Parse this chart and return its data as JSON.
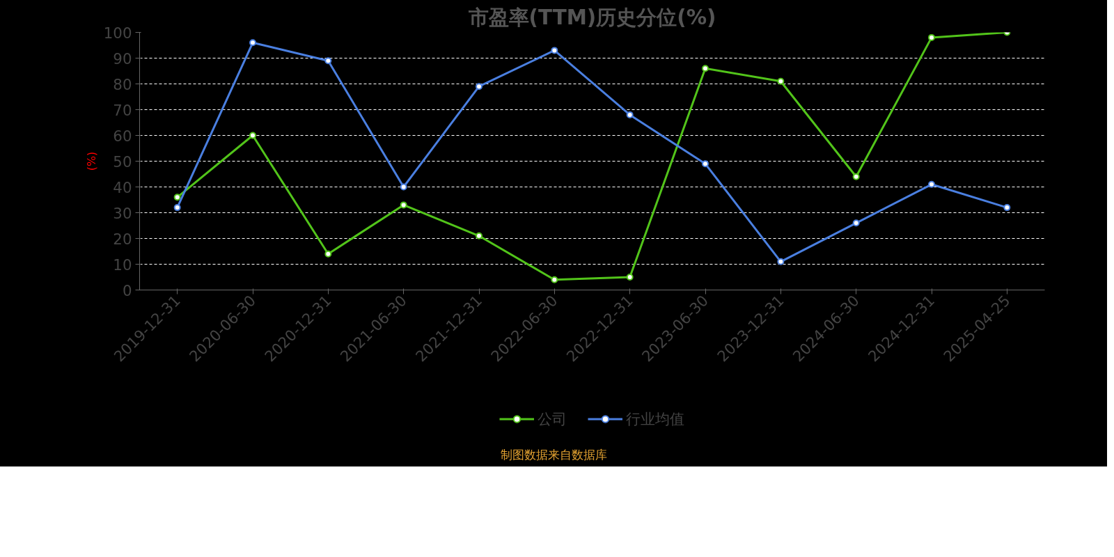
{
  "chart_data": {
    "type": "line",
    "title": "市盈率(TTM)历史分位(%)",
    "ylabel": "(%)",
    "categories": [
      "2019-12-31",
      "2020-06-30",
      "2020-12-31",
      "2021-06-30",
      "2021-12-31",
      "2022-06-30",
      "2022-12-31",
      "2023-06-30",
      "2023-12-31",
      "2024-06-30",
      "2024-12-31",
      "2025-04-25"
    ],
    "series": [
      {
        "name": "公司",
        "color": "#52c41a",
        "values": [
          36,
          60,
          14,
          33,
          21,
          4,
          5,
          86,
          81,
          44,
          98,
          100
        ]
      },
      {
        "name": "行业均值",
        "color": "#4a7fe0",
        "values": [
          32,
          96,
          89,
          40,
          79,
          93,
          68,
          49,
          11,
          26,
          41,
          32
        ]
      }
    ],
    "ylim": [
      0,
      100
    ],
    "yticks": [
      0,
      10,
      20,
      30,
      40,
      50,
      60,
      70,
      80,
      90,
      100
    ],
    "grid": "y",
    "legend": "bottom",
    "marker": "circle",
    "line_style": "solid",
    "annotations": [
      "制图数据来自数据库"
    ]
  }
}
